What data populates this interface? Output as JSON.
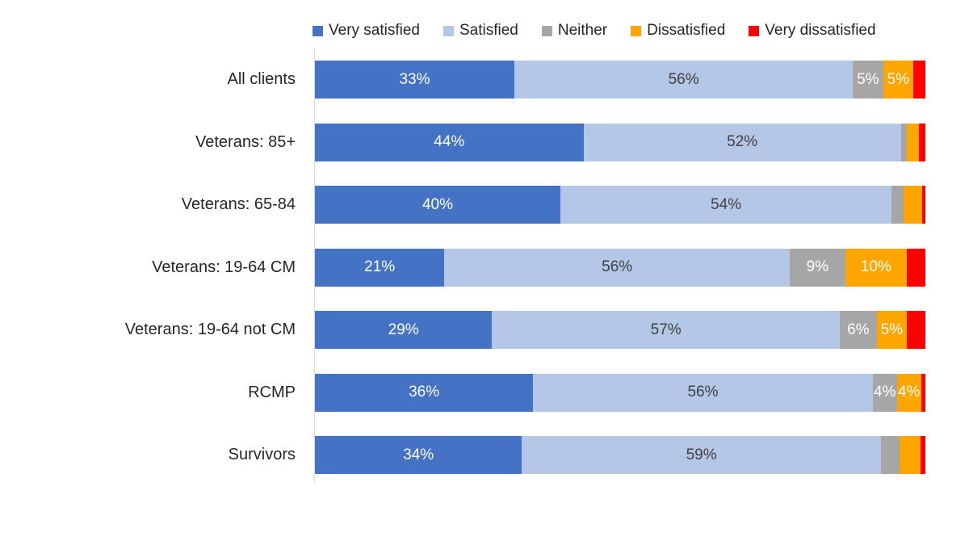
{
  "chart_data": {
    "type": "bar",
    "orientation": "horizontal-stacked",
    "title": "",
    "xlabel": "",
    "ylabel": "",
    "xlim": [
      0,
      100
    ],
    "grid": false,
    "legend_position": "top",
    "axis_line_color": "#d9d9d9",
    "series": [
      {
        "name": "Very satisfied",
        "color": "#4472C4",
        "label_color": "#FFFFFF"
      },
      {
        "name": "Satisfied",
        "color": "#B4C7E7",
        "label_color": "#404040"
      },
      {
        "name": "Neither",
        "color": "#A6A6A6",
        "label_color": "#FFFFFF"
      },
      {
        "name": "Dissatisfied",
        "color": "#FFA500",
        "label_color": "#FFFFFF"
      },
      {
        "name": "Very dissatisfied",
        "color": "#FF0000",
        "label_color": "#FFFFFF"
      }
    ],
    "categories": [
      "All clients",
      "Veterans: 85+",
      "Veterans: 65-84",
      "Veterans: 19-64 CM",
      "Veterans: 19-64 not CM",
      "RCMP",
      "Survivors"
    ],
    "rows": [
      {
        "category": "All clients",
        "values": [
          33,
          56,
          5,
          5,
          2
        ],
        "labels": [
          "33%",
          "56%",
          "5%",
          "5%",
          ""
        ]
      },
      {
        "category": "Veterans: 85+",
        "values": [
          44,
          52,
          1,
          2,
          1
        ],
        "labels": [
          "44%",
          "52%",
          "",
          "",
          ""
        ]
      },
      {
        "category": "Veterans: 65-84",
        "values": [
          40,
          54,
          2,
          3,
          0.5
        ],
        "labels": [
          "40%",
          "54%",
          "",
          "",
          ""
        ]
      },
      {
        "category": "Veterans: 19-64 CM",
        "values": [
          21,
          56,
          9,
          10,
          3
        ],
        "labels": [
          "21%",
          "56%",
          "9%",
          "10%",
          ""
        ]
      },
      {
        "category": "Veterans: 19-64 not CM",
        "values": [
          29,
          57,
          6,
          5,
          3
        ],
        "labels": [
          "29%",
          "57%",
          "6%",
          "5%",
          ""
        ]
      },
      {
        "category": "RCMP",
        "values": [
          36,
          56,
          4,
          4,
          0.7
        ],
        "labels": [
          "36%",
          "56%",
          "4%",
          "4%",
          ""
        ]
      },
      {
        "category": "Survivors",
        "values": [
          34,
          59,
          3,
          3.5,
          0.8
        ],
        "labels": [
          "34%",
          "59%",
          "",
          "",
          ""
        ]
      }
    ]
  }
}
